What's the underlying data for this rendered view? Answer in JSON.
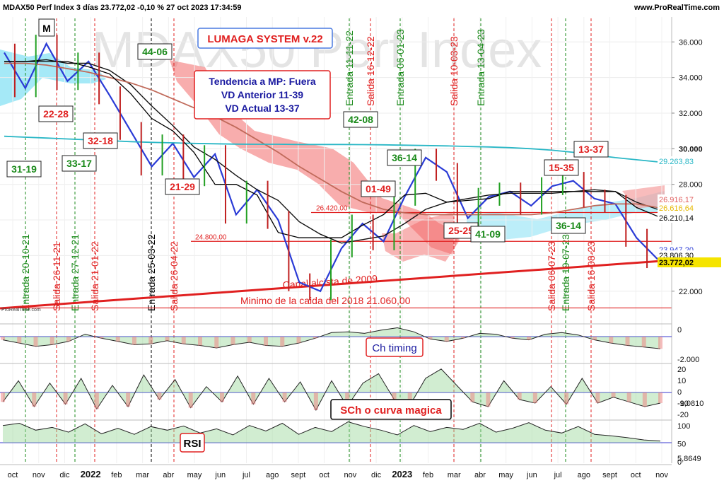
{
  "header": {
    "title": "MDAX50 Perf Index 3 días 23.772,02 -0,10 % 27 oct 2023 17:34:59",
    "site": "www.ProRealTime.com"
  },
  "watermark": "MDAX50 Perf Index",
  "chart_data": {
    "type": "line",
    "x_labels": [
      "oct",
      "nov",
      "dic",
      "2022",
      "feb",
      "mar",
      "abr",
      "may",
      "jun",
      "jul",
      "ago",
      "sept",
      "oct",
      "nov",
      "dic",
      "2023",
      "feb",
      "mar",
      "abr",
      "may",
      "jun",
      "jul",
      "ago",
      "sept",
      "oct",
      "nov"
    ],
    "y_ticks": [
      "36.000",
      "34.000",
      "32.000",
      "30.000",
      "28.000",
      "26.000",
      "24.000",
      "22.000"
    ],
    "ylim": [
      20800,
      37400
    ],
    "series": [
      {
        "values": [
          35400,
          33400,
          35900,
          33800,
          34900,
          33000,
          31000,
          29000,
          30300,
          28400,
          29700,
          26300,
          27700,
          26000,
          22500,
          22000,
          24400,
          25800,
          24800,
          27300,
          29500,
          28700,
          26100,
          27300,
          27600,
          26800,
          27900,
          28200,
          27200,
          26900,
          25000,
          23800
        ]
      },
      {
        "values": [
          34900,
          34900,
          35000,
          34800,
          34800,
          34400,
          33600,
          32400,
          31300,
          30100,
          29400,
          28500,
          27700,
          27100,
          25900,
          25200,
          24700,
          24900,
          25100,
          25800,
          26600,
          27000,
          27200,
          27400,
          27500,
          27500,
          27500,
          27600,
          27700,
          27600,
          27000,
          26600
        ]
      },
      {
        "values": [
          34800,
          34800,
          34700,
          34500,
          34300,
          34000,
          33700,
          33300,
          32800,
          32300,
          31800,
          31200,
          30500,
          29800,
          29000,
          28300,
          27600,
          27000,
          26600,
          26400,
          26300,
          26300,
          26300,
          26300,
          26300,
          26300,
          26400,
          26600,
          26800,
          26900,
          26900,
          26700
        ]
      },
      {
        "values": [
          30700,
          30650,
          30600,
          30550,
          30500,
          30450,
          30400,
          30360,
          30330,
          30300,
          30280,
          30260,
          30250,
          30250,
          30240,
          30240,
          30240,
          30230,
          30220,
          30200,
          30180,
          30160,
          30130,
          30100,
          30060,
          30000,
          29920,
          29800,
          29650,
          29500,
          29380,
          29264
        ]
      },
      {
        "values": [
          34900,
          34900,
          34900,
          34900,
          34600,
          34200,
          33100,
          31700,
          31000,
          29800,
          28000,
          28000,
          27400,
          25300,
          25000,
          25000,
          25000,
          25700,
          26300,
          27400,
          27500,
          27000,
          27100,
          27200,
          27600,
          27600,
          27600,
          27600,
          27600,
          27600,
          26700,
          26210
        ]
      }
    ],
    "labels": {
      "system": "LUMAGA SYSTEM v.22",
      "trend_line1": "Tendencia a MP: Fuera",
      "trend_line2": "VD Anterior 11-39",
      "trend_line3": "VD Actual 13-37",
      "m_box": "M",
      "level_26420": "26.420,00",
      "level_24800": "24.800,00",
      "canal": "Canal alcista de 2009",
      "minimo": "Minimo de la caida del 2018  21.060,00",
      "small_logo": "ProRealTime.com"
    },
    "count_boxes": [
      {
        "text": "44-06",
        "color": "green"
      },
      {
        "text": "22-28",
        "color": "red"
      },
      {
        "text": "32-18",
        "color": "red"
      },
      {
        "text": "31-19",
        "color": "green"
      },
      {
        "text": "33-17",
        "color": "green"
      },
      {
        "text": "21-29",
        "color": "red"
      },
      {
        "text": "42-08",
        "color": "green"
      },
      {
        "text": "36-14",
        "color": "green"
      },
      {
        "text": "01-49",
        "color": "red"
      },
      {
        "text": "25-25",
        "color": "red"
      },
      {
        "text": "41-09",
        "color": "green"
      },
      {
        "text": "36-14",
        "color": "green"
      },
      {
        "text": "15-35",
        "color": "red"
      },
      {
        "text": "13-37",
        "color": "red"
      }
    ],
    "vertical_events": [
      {
        "text": "Entrada 20-10-21",
        "color": "green"
      },
      {
        "text": "Salida 26-11-21",
        "color": "red"
      },
      {
        "text": "Entrada 27-12-21",
        "color": "green"
      },
      {
        "text": "Salida 21-01-22",
        "color": "red"
      },
      {
        "text": "Entrada 25-03-22",
        "color": "black"
      },
      {
        "text": "Salida 26-04-22",
        "color": "red"
      },
      {
        "text": "Entrada 11-11-22",
        "color": "green"
      },
      {
        "text": "Salida 16-12-22",
        "color": "red"
      },
      {
        "text": "Entrada 06-01-23",
        "color": "green"
      },
      {
        "text": "Salida 10-03-23",
        "color": "red"
      },
      {
        "text": "Entrada 13-04-23",
        "color": "green"
      },
      {
        "text": "Salida 06-07-23",
        "color": "red"
      },
      {
        "text": "Entrada 19-07-23",
        "color": "green"
      },
      {
        "text": "Salida 16-08-23",
        "color": "red"
      }
    ],
    "price_tags": [
      {
        "text": "29.263,83",
        "color": "#2ab7c6"
      },
      {
        "text": "26.916,17",
        "color": "#e06060"
      },
      {
        "text": "26.616,64",
        "color": "#e6b800"
      },
      {
        "text": "26.210,14",
        "color": "#000000"
      },
      {
        "text": "23.947,20",
        "color": "#2a3bd6"
      },
      {
        "text": "23.806,30",
        "color": "#000000"
      },
      {
        "text": "23.772,02",
        "color": "#000000"
      }
    ],
    "indicators": [
      {
        "label": "Ch timing",
        "ticks": [
          "0",
          "-2.000"
        ],
        "values": [
          -0.4,
          -0.8,
          -1.2,
          -1.0,
          -0.6,
          0.3,
          -0.2,
          -0.6,
          -1.0,
          -0.9,
          -0.5,
          -0.9,
          -1.1,
          -1.4,
          -1.0,
          -0.7,
          -1.1,
          -1.2,
          -0.8,
          -0.2,
          0.5,
          0.6,
          0.4,
          0.8,
          1.1,
          0.6,
          -0.3,
          -0.6,
          -0.2,
          0.4,
          0.3,
          -0.2,
          -0.4,
          0.3,
          0.5,
          0.2,
          -0.4,
          -0.8,
          -1.1,
          -1.3,
          -1.5
        ]
      },
      {
        "label": "SCh o curva magica",
        "ticks": [
          "20",
          "10",
          "0",
          "-10",
          "-20"
        ],
        "value_tag": "-9,0810",
        "values": [
          -8,
          10,
          -12,
          8,
          -10,
          12,
          -14,
          6,
          -12,
          15,
          -6,
          11,
          -13,
          5,
          -8,
          14,
          -10,
          12,
          -8,
          9,
          -15,
          10,
          -12,
          8,
          16,
          -6,
          -11,
          12,
          20,
          6,
          -8,
          -12,
          10,
          -6,
          -9,
          5,
          -10,
          12,
          -9,
          -4,
          -8,
          -12,
          -9
        ]
      },
      {
        "label": "RSI",
        "ticks": [
          "100",
          "50",
          "0"
        ],
        "value_tag": "5,8649",
        "values": [
          62,
          70,
          45,
          55,
          38,
          68,
          32,
          52,
          30,
          58,
          45,
          60,
          35,
          50,
          28,
          62,
          42,
          70,
          30,
          55,
          40,
          75,
          58,
          45,
          28,
          62,
          40,
          55,
          48,
          70,
          38,
          52,
          72,
          45,
          35,
          58,
          30,
          25,
          18,
          10,
          6
        ]
      }
    ]
  }
}
